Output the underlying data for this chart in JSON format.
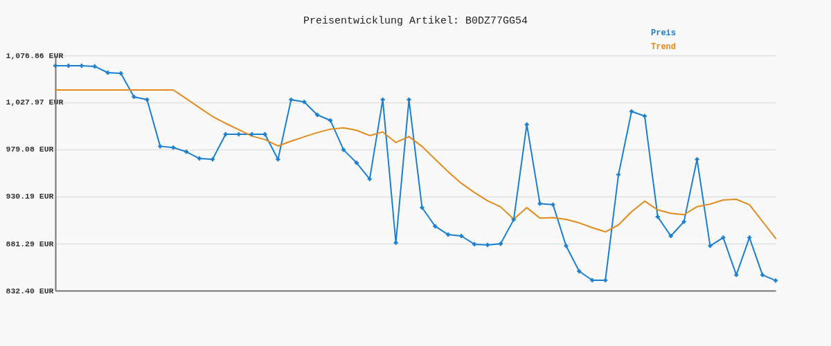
{
  "chart_data": {
    "type": "line",
    "title": "Preisentwicklung Artikel: B0DZ77GG54",
    "categories": [
      null,
      null,
      null,
      null,
      null,
      null,
      null,
      null,
      null,
      null,
      null,
      null,
      null,
      null,
      null,
      null,
      null,
      null,
      null,
      null,
      null,
      null,
      null,
      null,
      null,
      null,
      null,
      null,
      null,
      null,
      null,
      null,
      null,
      null,
      null,
      null,
      null,
      null,
      null,
      null,
      null,
      null,
      null,
      null,
      null,
      null,
      null,
      null,
      null,
      null,
      null,
      null,
      null,
      null,
      null,
      null
    ],
    "series": [
      {
        "name": "Preis",
        "color": "#1a7fd0",
        "marker": "cross",
        "values": [
          1066.1,
          1066.1,
          1066.1,
          1065.4,
          1058.9,
          1058.2,
          1033.7,
          1030.8,
          982.4,
          981.0,
          976.7,
          969.7,
          968.8,
          994.9,
          994.9,
          994.9,
          994.9,
          968.8,
          1030.8,
          1028.5,
          1015.0,
          1009.3,
          978.8,
          965.2,
          948.4,
          1030.8,
          882.2,
          1030.8,
          918.7,
          899.3,
          890.6,
          889.2,
          880.6,
          879.9,
          881.1,
          906.2,
          1005.0,
          922.8,
          921.8,
          878.9,
          852.5,
          843.2,
          843.2,
          952.9,
          1018.6,
          1013.8,
          909.1,
          889.2,
          904.0,
          968.8,
          878.9,
          887.5,
          848.7,
          887.5,
          848.7,
          842.9
        ]
      },
      {
        "name": "Trend",
        "color": "#e38a1c",
        "marker": "none",
        "values": [
          1040.9,
          1040.9,
          1040.9,
          1040.9,
          1040.9,
          1040.9,
          1040.9,
          1040.9,
          1040.9,
          1040.9,
          1031.8,
          1022.5,
          1013.4,
          1006.2,
          999.7,
          993.0,
          989.4,
          982.7,
          987.7,
          992.3,
          996.6,
          1000.2,
          1001.6,
          999.0,
          993.5,
          997.3,
          986.3,
          992.5,
          982.2,
          969.0,
          955.8,
          943.9,
          934.4,
          925.8,
          919.5,
          906.6,
          918.6,
          907.8,
          908.3,
          906.4,
          902.8,
          897.8,
          893.5,
          900.7,
          914.4,
          925.4,
          916.3,
          912.7,
          911.3,
          919.6,
          922.3,
          926.6,
          927.3,
          921.6,
          904.3,
          886.8
        ]
      }
    ],
    "ylim": [
      832.4,
      1076.86
    ],
    "yticks": [
      {
        "value": 832.4,
        "label": "832.40 EUR"
      },
      {
        "value": 881.29,
        "label": "881.29 EUR"
      },
      {
        "value": 930.19,
        "label": "930.19 EUR"
      },
      {
        "value": 979.08,
        "label": "979.08 EUR"
      },
      {
        "value": 1027.97,
        "label": "1,027.97 EUR"
      },
      {
        "value": 1076.86,
        "label": "1,076.86 EUR"
      }
    ],
    "grid": "y",
    "legend": "top right",
    "tick_labels": "y",
    "line_style": "solid"
  }
}
